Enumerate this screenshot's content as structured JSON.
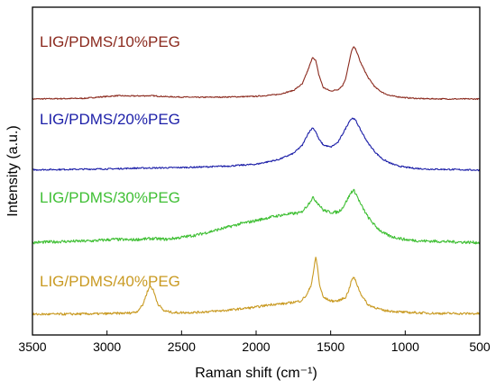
{
  "chart_data": {
    "type": "line",
    "title": "",
    "xlabel": "Raman shift (cm⁻¹)",
    "ylabel": "Intensity (a.u.)",
    "xlim": [
      3500,
      500
    ],
    "x_reversed": true,
    "xticks": [
      3500,
      3000,
      2500,
      2000,
      1500,
      1000,
      500
    ],
    "ylim": [
      0,
      100
    ],
    "y_ticks_shown": false,
    "grid": false,
    "legend": "inline labels above each trace",
    "series": [
      {
        "name": "LIG/PDMS/10%PEG",
        "color": "#8B2A1E",
        "x": [
          3500,
          3300,
          3150,
          3050,
          2930,
          2850,
          2700,
          2600,
          2400,
          2200,
          2000,
          1850,
          1750,
          1690,
          1650,
          1620,
          1600,
          1580,
          1550,
          1500,
          1450,
          1420,
          1400,
          1380,
          1360,
          1345,
          1330,
          1300,
          1250,
          1200,
          1150,
          1100,
          1000,
          900,
          700,
          500
        ],
        "y": [
          72.0,
          72.1,
          72.2,
          72.6,
          73.0,
          72.9,
          73.0,
          72.7,
          72.5,
          72.6,
          72.8,
          73.4,
          74.6,
          76.6,
          81.1,
          84.8,
          83.7,
          79.5,
          75.5,
          74.4,
          74.9,
          76.1,
          78.2,
          82.3,
          86.7,
          87.9,
          87.0,
          83.2,
          78.6,
          75.5,
          73.9,
          73.0,
          72.4,
          72.1,
          72.0,
          72.0
        ]
      },
      {
        "name": "LIG/PDMS/20%PEG",
        "color": "#1C1FA8",
        "x": [
          3500,
          3300,
          3100,
          2950,
          2800,
          2600,
          2400,
          2200,
          2000,
          1850,
          1750,
          1690,
          1650,
          1620,
          1600,
          1580,
          1550,
          1500,
          1450,
          1400,
          1370,
          1350,
          1330,
          1300,
          1250,
          1200,
          1150,
          1100,
          1050,
          1000,
          950,
          850,
          700,
          500
        ],
        "y": [
          50.4,
          50.5,
          50.6,
          50.7,
          50.9,
          51.0,
          51.2,
          51.5,
          52.1,
          53.5,
          55.4,
          57.9,
          61.6,
          63.3,
          62.0,
          59.8,
          58.0,
          57.3,
          58.8,
          63.0,
          65.6,
          66.2,
          65.3,
          62.6,
          58.6,
          55.7,
          53.6,
          52.4,
          51.6,
          51.2,
          50.9,
          50.6,
          50.5,
          50.3
        ]
      },
      {
        "name": "LIG/PDMS/30%PEG",
        "color": "#3FBF34",
        "x": [
          3500,
          3300,
          3100,
          2950,
          2850,
          2700,
          2600,
          2500,
          2400,
          2300,
          2200,
          2100,
          2000,
          1900,
          1800,
          1700,
          1660,
          1620,
          1600,
          1580,
          1550,
          1500,
          1450,
          1420,
          1390,
          1360,
          1345,
          1330,
          1300,
          1250,
          1200,
          1150,
          1100,
          1000,
          900,
          800,
          600,
          500
        ],
        "y": [
          28.2,
          28.5,
          28.7,
          29.2,
          29.0,
          29.4,
          29.2,
          29.8,
          30.5,
          31.6,
          32.8,
          34.0,
          34.9,
          36.0,
          36.8,
          37.3,
          39.3,
          41.9,
          41.0,
          39.9,
          38.1,
          37.4,
          37.5,
          38.8,
          41.2,
          43.7,
          44.1,
          43.1,
          40.0,
          36.0,
          33.2,
          31.2,
          30.1,
          29.1,
          28.7,
          28.6,
          28.3,
          28.2
        ]
      },
      {
        "name": "LIG/PDMS/40%PEG",
        "color": "#C99A22",
        "x": [
          3500,
          3200,
          3000,
          2850,
          2800,
          2760,
          2730,
          2710,
          2690,
          2660,
          2620,
          2550,
          2400,
          2200,
          2000,
          1900,
          1800,
          1700,
          1660,
          1630,
          1610,
          1600,
          1590,
          1575,
          1550,
          1500,
          1450,
          1400,
          1380,
          1360,
          1345,
          1330,
          1300,
          1250,
          1150,
          1000,
          800,
          500
        ],
        "y": [
          6.3,
          6.4,
          6.5,
          6.7,
          7.1,
          9.2,
          13.2,
          15.0,
          13.7,
          9.6,
          7.4,
          6.8,
          6.9,
          7.5,
          8.5,
          9.3,
          9.6,
          10.4,
          12.2,
          15.4,
          20.8,
          23.8,
          21.3,
          15.4,
          11.5,
          10.4,
          10.4,
          11.5,
          13.5,
          16.7,
          17.6,
          16.2,
          12.7,
          9.2,
          7.5,
          6.9,
          6.6,
          6.5
        ]
      }
    ]
  }
}
